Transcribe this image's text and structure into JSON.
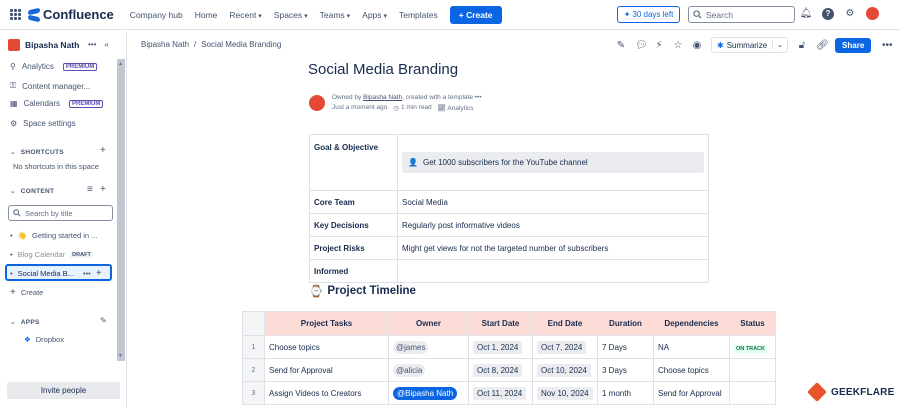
{
  "topbar": {
    "logo": "Confluence",
    "nav": [
      "Company hub",
      "Home",
      "Recent",
      "Spaces",
      "Teams",
      "Apps",
      "Templates"
    ],
    "create_label": "Create",
    "trial_label": "30 days left",
    "search_placeholder": "Search"
  },
  "sidebar": {
    "space_name": "Bipasha Nath",
    "items": [
      {
        "label": "Analytics",
        "badge": "PREMIUM"
      },
      {
        "label": "Content manager...",
        "badge": ""
      },
      {
        "label": "Calendars",
        "badge": "PREMIUM"
      },
      {
        "label": "Space settings",
        "badge": ""
      }
    ],
    "shortcuts_header": "SHORTCUTS",
    "shortcuts_empty": "No shortcuts in this space",
    "content_header": "CONTENT",
    "search_placeholder": "Search by title",
    "tree": [
      {
        "label": "Getting started in ...",
        "tag": ""
      },
      {
        "label": "Blog Calendar",
        "tag": "DRAFT"
      },
      {
        "label": "Social Media B...",
        "tag": ""
      }
    ],
    "create_label": "Create",
    "apps_header": "APPS",
    "app_item": "Dropbox",
    "invite_label": "Invite people"
  },
  "breadcrumb": [
    "Bipasha Nath",
    "/",
    "Social Media Branding"
  ],
  "toolbar": {
    "summarize_label": "Summarize",
    "share_label": "Share"
  },
  "page": {
    "title": "Social Media Branding",
    "owned_prefix": "Owned by",
    "owner": "Bipasha Nath",
    "owned_suffix": ", created with a template",
    "updated": "Just a moment ago",
    "read_time": "1 min read",
    "analytics": "Analytics"
  },
  "info_table": [
    {
      "key": "Goal & Objective",
      "value": "Get 1000 subscribers for the YouTube channel"
    },
    {
      "key": "Core Team",
      "value": "Social Media"
    },
    {
      "key": "Key Decisions",
      "value": "Regularly post informative videos"
    },
    {
      "key": "Project Risks",
      "value": "Might get views for not the targeted number of subscribers"
    },
    {
      "key": "Informed",
      "value": ""
    }
  ],
  "timeline": {
    "heading": "Project Timeline",
    "columns": [
      "Project Tasks",
      "Owner",
      "Start Date",
      "End Date",
      "Duration",
      "Dependencies",
      "Status"
    ],
    "rows": [
      {
        "n": "1",
        "task": "Choose topics",
        "owner": "@james",
        "start": "Oct 1, 2024",
        "end": "Oct 7, 2024",
        "duration": "7 Days",
        "deps": "NA",
        "status": "ON TRACK"
      },
      {
        "n": "2",
        "task": "Send for Approval",
        "owner": "@alicia",
        "start": "Oct 8, 2024",
        "end": "Oct 10, 2024",
        "duration": "3 Days",
        "deps": "Choose topics",
        "status": ""
      },
      {
        "n": "3",
        "task": "Assign Videos to Creators",
        "owner": "@Bipasha Nath",
        "start": "Oct 11, 2024",
        "end": "Nov 10, 2024",
        "duration": "1 month",
        "deps": "Send for Approval",
        "status": ""
      }
    ]
  },
  "watermark": "GEEKFLARE"
}
